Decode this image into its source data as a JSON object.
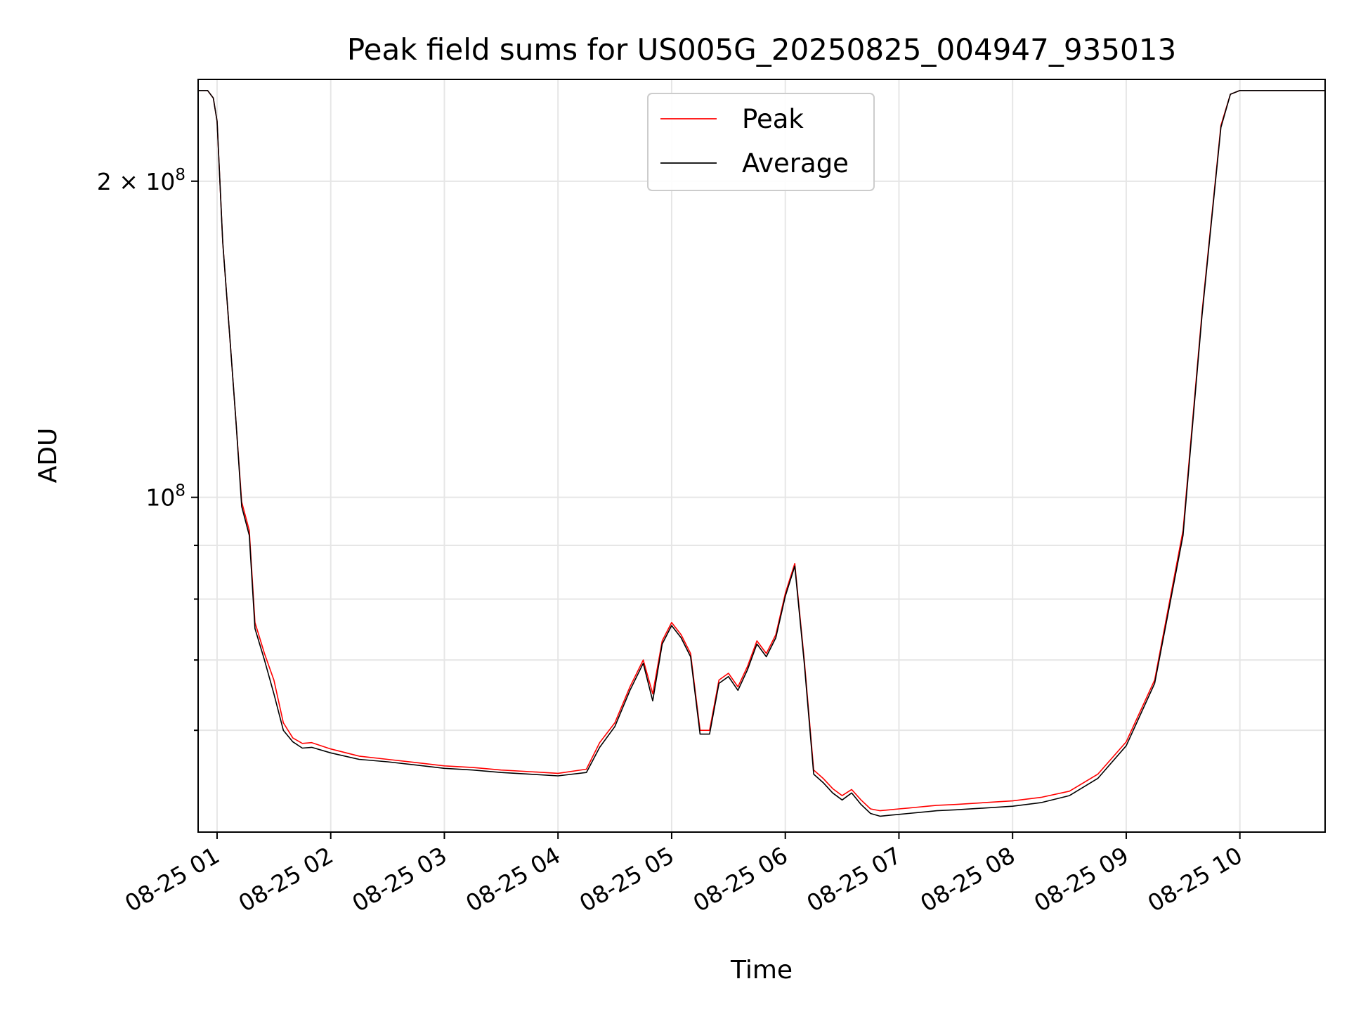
{
  "chart_data": {
    "type": "line",
    "title": "Peak field sums for US005G_20250825_004947_935013",
    "xlabel": "Time",
    "ylabel": "ADU",
    "yscale": "log",
    "xlim": [
      "08-25 00:50",
      "08-25 10:45"
    ],
    "ylim": [
      48000000,
      250000000
    ],
    "grid": true,
    "legend_position": "top-center",
    "x_ticks": [
      {
        "value": "08-25 01:00",
        "label": "08-25 01"
      },
      {
        "value": "08-25 02:00",
        "label": "08-25 02"
      },
      {
        "value": "08-25 03:00",
        "label": "08-25 03"
      },
      {
        "value": "08-25 04:00",
        "label": "08-25 04"
      },
      {
        "value": "08-25 05:00",
        "label": "08-25 05"
      },
      {
        "value": "08-25 06:00",
        "label": "08-25 06"
      },
      {
        "value": "08-25 07:00",
        "label": "08-25 07"
      },
      {
        "value": "08-25 08:00",
        "label": "08-25 08"
      },
      {
        "value": "08-25 09:00",
        "label": "08-25 09"
      },
      {
        "value": "08-25 10:00",
        "label": "08-25 10"
      }
    ],
    "y_major_ticks": [
      {
        "value": 100000000,
        "base": "10",
        "exp": "8",
        "mantissa": ""
      },
      {
        "value": 200000000,
        "base": "10",
        "exp": "8",
        "mantissa": "2 × "
      }
    ],
    "y_minor_ticks": [
      60000000,
      70000000,
      80000000,
      90000000
    ],
    "series": [
      {
        "name": "Peak",
        "color": "#ff0000",
        "x": [
          "08-25 00:50",
          "08-25 00:55",
          "08-25 00:58",
          "08-25 01:00",
          "08-25 01:03",
          "08-25 01:07",
          "08-25 01:10",
          "08-25 01:13",
          "08-25 01:17",
          "08-25 01:20",
          "08-25 01:25",
          "08-25 01:30",
          "08-25 01:35",
          "08-25 01:40",
          "08-25 01:45",
          "08-25 01:50",
          "08-25 02:00",
          "08-25 02:15",
          "08-25 02:30",
          "08-25 02:45",
          "08-25 03:00",
          "08-25 03:15",
          "08-25 03:30",
          "08-25 03:45",
          "08-25 04:00",
          "08-25 04:15",
          "08-25 04:22",
          "08-25 04:30",
          "08-25 04:38",
          "08-25 04:45",
          "08-25 04:50",
          "08-25 04:55",
          "08-25 05:00",
          "08-25 05:05",
          "08-25 05:10",
          "08-25 05:15",
          "08-25 05:20",
          "08-25 05:25",
          "08-25 05:30",
          "08-25 05:35",
          "08-25 05:40",
          "08-25 05:45",
          "08-25 05:50",
          "08-25 05:55",
          "08-25 06:00",
          "08-25 06:05",
          "08-25 06:10",
          "08-25 06:15",
          "08-25 06:20",
          "08-25 06:25",
          "08-25 06:30",
          "08-25 06:35",
          "08-25 06:40",
          "08-25 06:45",
          "08-25 06:50",
          "08-25 06:55",
          "08-25 07:00",
          "08-25 07:05",
          "08-25 07:10",
          "08-25 07:15",
          "08-25 07:20",
          "08-25 07:30",
          "08-25 07:45",
          "08-25 08:00",
          "08-25 08:15",
          "08-25 08:30",
          "08-25 08:45",
          "08-25 09:00",
          "08-25 09:15",
          "08-25 09:30",
          "08-25 09:40",
          "08-25 09:50",
          "08-25 09:55",
          "08-25 10:00",
          "08-25 10:05",
          "08-25 10:10",
          "08-25 10:15",
          "08-25 10:20",
          "08-25 10:25",
          "08-25 10:30",
          "08-25 10:35",
          "08-25 10:40",
          "08-25 10:45"
        ],
        "values": [
          244000000,
          244000000,
          240000000,
          228000000,
          175000000,
          140000000,
          118000000,
          99000000,
          93000000,
          76000000,
          71000000,
          67000000,
          61000000,
          59000000,
          58300000,
          58400000,
          57600000,
          56700000,
          56300000,
          55900000,
          55500000,
          55300000,
          55000000,
          54800000,
          54600000,
          55100000,
          58400000,
          61000000,
          66000000,
          70000000,
          65000000,
          73000000,
          76000000,
          74000000,
          71000000,
          60000000,
          60000000,
          67000000,
          68000000,
          66000000,
          69000000,
          73000000,
          71000000,
          74000000,
          81000000,
          86500000,
          70000000,
          55000000,
          54000000,
          52800000,
          52000000,
          52700000,
          51500000,
          50500000,
          50300000,
          50400000,
          50500000,
          50600000,
          50700000,
          50800000,
          50900000,
          51000000,
          51200000,
          51400000,
          51800000,
          52500000,
          54500000,
          58500000,
          67000000,
          93000000,
          150000000,
          226000000,
          242000000,
          244000000,
          244000000,
          244000000,
          244000000,
          244000000,
          244000000,
          244000000,
          244000000,
          244000000,
          244000000
        ]
      },
      {
        "name": "Average",
        "color": "#000000",
        "x": [
          "08-25 00:50",
          "08-25 00:55",
          "08-25 00:58",
          "08-25 01:00",
          "08-25 01:03",
          "08-25 01:07",
          "08-25 01:10",
          "08-25 01:13",
          "08-25 01:17",
          "08-25 01:20",
          "08-25 01:25",
          "08-25 01:30",
          "08-25 01:35",
          "08-25 01:40",
          "08-25 01:45",
          "08-25 01:50",
          "08-25 02:00",
          "08-25 02:15",
          "08-25 02:30",
          "08-25 02:45",
          "08-25 03:00",
          "08-25 03:15",
          "08-25 03:30",
          "08-25 03:45",
          "08-25 04:00",
          "08-25 04:15",
          "08-25 04:22",
          "08-25 04:30",
          "08-25 04:38",
          "08-25 04:45",
          "08-25 04:50",
          "08-25 04:55",
          "08-25 05:00",
          "08-25 05:05",
          "08-25 05:10",
          "08-25 05:15",
          "08-25 05:20",
          "08-25 05:25",
          "08-25 05:30",
          "08-25 05:35",
          "08-25 05:40",
          "08-25 05:45",
          "08-25 05:50",
          "08-25 05:55",
          "08-25 06:00",
          "08-25 06:05",
          "08-25 06:10",
          "08-25 06:15",
          "08-25 06:20",
          "08-25 06:25",
          "08-25 06:30",
          "08-25 06:35",
          "08-25 06:40",
          "08-25 06:45",
          "08-25 06:50",
          "08-25 06:55",
          "08-25 07:00",
          "08-25 07:05",
          "08-25 07:10",
          "08-25 07:15",
          "08-25 07:20",
          "08-25 07:30",
          "08-25 07:45",
          "08-25 08:00",
          "08-25 08:15",
          "08-25 08:30",
          "08-25 08:45",
          "08-25 09:00",
          "08-25 09:15",
          "08-25 09:30",
          "08-25 09:40",
          "08-25 09:50",
          "08-25 09:55",
          "08-25 10:00",
          "08-25 10:05",
          "08-25 10:10",
          "08-25 10:15",
          "08-25 10:20",
          "08-25 10:25",
          "08-25 10:30",
          "08-25 10:35",
          "08-25 10:40",
          "08-25 10:45"
        ],
        "values": [
          244000000,
          244000000,
          240000000,
          228000000,
          175000000,
          140000000,
          118000000,
          98000000,
          92000000,
          75000000,
          70000000,
          65000000,
          60000000,
          58500000,
          57700000,
          57800000,
          57100000,
          56300000,
          56000000,
          55600000,
          55200000,
          55000000,
          54700000,
          54500000,
          54300000,
          54700000,
          57800000,
          60500000,
          65500000,
          69500000,
          64000000,
          72500000,
          75500000,
          73500000,
          70500000,
          59500000,
          59500000,
          66500000,
          67500000,
          65500000,
          68500000,
          72500000,
          70500000,
          73500000,
          80500000,
          86000000,
          69500000,
          54500000,
          53500000,
          52300000,
          51500000,
          52300000,
          51000000,
          50000000,
          49700000,
          49800000,
          49900000,
          50000000,
          50100000,
          50200000,
          50300000,
          50400000,
          50600000,
          50800000,
          51200000,
          52000000,
          54000000,
          58000000,
          66500000,
          92000000,
          149000000,
          225000000,
          242000000,
          244000000,
          244000000,
          244000000,
          244000000,
          244000000,
          244000000,
          244000000,
          244000000,
          244000000,
          244000000
        ]
      }
    ]
  }
}
